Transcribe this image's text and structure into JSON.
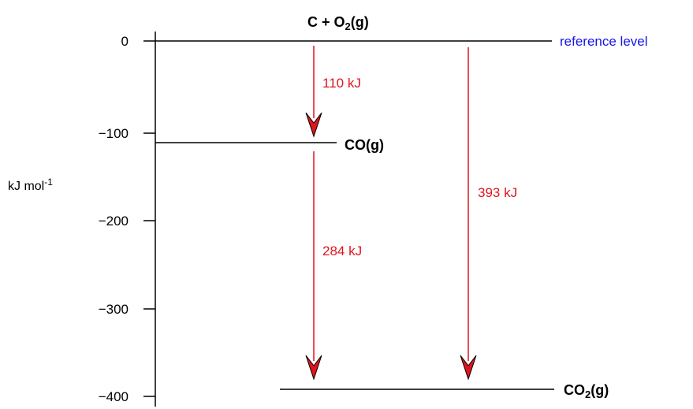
{
  "axis": {
    "unit_main": "kJ mol",
    "unit_exp": "-1",
    "ticks": [
      "0",
      "−100",
      "−200",
      "−300",
      "−400"
    ]
  },
  "levels": {
    "reactants": {
      "main1": "C + O",
      "sub": "2",
      "main2": "(g)",
      "energy": 0
    },
    "intermediate": {
      "label": "CO(g)",
      "energy": -110
    },
    "products": {
      "main1": "CO",
      "sub": "2",
      "main2": "(g)",
      "energy": -393
    }
  },
  "reference_label": "reference level",
  "transitions": [
    {
      "label": "110 kJ",
      "value": 110
    },
    {
      "label": "284 kJ",
      "value": 284
    },
    {
      "label": "393 kJ",
      "value": 393
    }
  ],
  "colors": {
    "reference": "#1515e6",
    "arrow": "#e0141c",
    "line": "#000000"
  }
}
